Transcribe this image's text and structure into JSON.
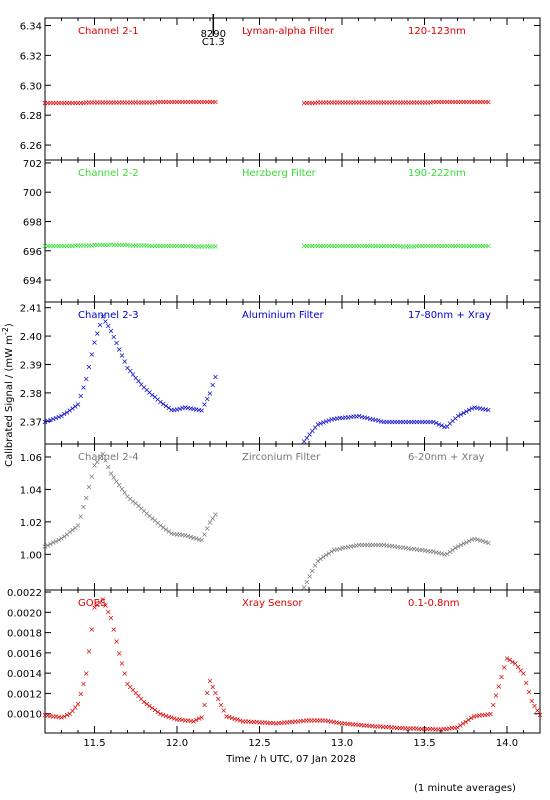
{
  "chart_data": [
    {
      "type": "scatter",
      "color": "#dd0000",
      "labels": [
        "Channel 2-1",
        "Lyman-alpha Filter",
        "120-123nm"
      ],
      "ylim": [
        6.25,
        6.345
      ],
      "yticks": [
        "6.26",
        "6.28",
        "6.30",
        "6.32",
        "6.34"
      ],
      "segments": [
        {
          "x": [
            11.2,
            11.4,
            11.6,
            11.8,
            12.0,
            12.24
          ],
          "y": [
            6.2885,
            6.2886,
            6.2888,
            6.2889,
            6.2891,
            6.2893
          ]
        },
        {
          "x": [
            12.77,
            13.0,
            13.2,
            13.4,
            13.6,
            13.9
          ],
          "y": [
            6.2886,
            6.2887,
            6.2888,
            6.2889,
            6.289,
            6.2892
          ]
        }
      ],
      "marker": {
        "x": 12.22,
        "lines": [
          "8290",
          "C1.3"
        ]
      }
    },
    {
      "type": "scatter",
      "color": "#33dd33",
      "labels": [
        "Channel 2-2",
        "Herzberg Filter",
        "190-222nm"
      ],
      "ylim": [
        692.5,
        702.2
      ],
      "yticks": [
        "694",
        "696",
        "698",
        "700",
        "702"
      ],
      "segments": [
        {
          "x": [
            11.2,
            11.4,
            11.6,
            11.8,
            12.0,
            12.24
          ],
          "y": [
            696.35,
            696.38,
            696.45,
            696.38,
            696.35,
            696.33
          ]
        },
        {
          "x": [
            12.77,
            13.0,
            13.2,
            13.4,
            13.6,
            13.9
          ],
          "y": [
            696.35,
            696.36,
            696.35,
            696.34,
            696.35,
            696.36
          ]
        }
      ]
    },
    {
      "type": "scatter",
      "color": "#0000cc",
      "labels": [
        "Channel 2-3",
        "Aluminium Filter",
        "17-80nm + Xray"
      ],
      "ylim": [
        2.362,
        2.412
      ],
      "yticks": [
        "2.37",
        "2.38",
        "2.39",
        "2.40",
        "2.41"
      ],
      "segments": [
        {
          "x": [
            11.2,
            11.3,
            11.4,
            11.45,
            11.5,
            11.55,
            11.6,
            11.7,
            11.8,
            11.9,
            11.97,
            12.05,
            12.15,
            12.2,
            12.24
          ],
          "y": [
            2.37,
            2.372,
            2.376,
            2.385,
            2.398,
            2.407,
            2.402,
            2.389,
            2.382,
            2.377,
            2.374,
            2.375,
            2.374,
            2.38,
            2.387
          ]
        },
        {
          "x": [
            12.77,
            12.85,
            12.95,
            13.1,
            13.25,
            13.4,
            13.55,
            13.63,
            13.7,
            13.8,
            13.9
          ],
          "y": [
            2.363,
            2.369,
            2.371,
            2.372,
            2.37,
            2.37,
            2.37,
            2.368,
            2.372,
            2.375,
            2.374
          ]
        }
      ]
    },
    {
      "type": "scatter",
      "color": "#777777",
      "labels": [
        "Channel 2-4",
        "Zirconium Filter",
        "6-20nm + Xray"
      ],
      "ylim": [
        0.978,
        1.068
      ],
      "yticks": [
        "1.00",
        "1.02",
        "1.04",
        "1.06"
      ],
      "segments": [
        {
          "x": [
            11.2,
            11.3,
            11.4,
            11.45,
            11.5,
            11.55,
            11.6,
            11.7,
            11.8,
            11.9,
            11.97,
            12.05,
            12.15,
            12.2,
            12.24
          ],
          "y": [
            1.005,
            1.01,
            1.018,
            1.035,
            1.055,
            1.062,
            1.05,
            1.036,
            1.027,
            1.018,
            1.013,
            1.012,
            1.009,
            1.02,
            1.026
          ]
        },
        {
          "x": [
            12.77,
            12.85,
            12.95,
            13.1,
            13.25,
            13.4,
            13.55,
            13.63,
            13.7,
            13.8,
            13.9
          ],
          "y": [
            0.98,
            0.996,
            1.003,
            1.006,
            1.006,
            1.004,
            1.002,
            1.0,
            1.005,
            1.01,
            1.007
          ]
        }
      ]
    },
    {
      "type": "scatter",
      "color": "#dd0000",
      "labels": [
        "GOES",
        "Xray Sensor",
        "0.1-0.8nm"
      ],
      "ylim": [
        0.00081,
        0.00222
      ],
      "yticks": [
        "0.0010",
        "0.0012",
        "0.0014",
        "0.0016",
        "0.0018",
        "0.0020",
        "0.0022"
      ],
      "xticks": [
        "11.5",
        "12.0",
        "12.5",
        "13.0",
        "13.5",
        "14.0"
      ],
      "xticks_values": [
        11.5,
        12.0,
        12.5,
        13.0,
        13.5,
        14.0
      ],
      "xlim": [
        11.2,
        14.2
      ],
      "segments": [
        {
          "x": [
            11.2,
            11.3,
            11.35,
            11.4,
            11.45,
            11.5,
            11.55,
            11.6,
            11.65,
            11.7,
            11.8,
            11.9,
            12.0,
            12.1,
            12.15,
            12.2,
            12.25,
            12.3,
            12.4,
            12.6,
            12.8,
            12.9,
            13.0,
            13.2,
            13.4,
            13.6,
            13.7,
            13.8,
            13.9,
            14.0,
            14.05,
            14.1,
            14.15,
            14.2
          ],
          "y": [
            0.00099,
            0.00097,
            0.001,
            0.0011,
            0.0014,
            0.00205,
            0.00213,
            0.00195,
            0.0016,
            0.0013,
            0.00112,
            0.001,
            0.00095,
            0.00093,
            0.00097,
            0.00133,
            0.00115,
            0.00098,
            0.00093,
            0.00091,
            0.00094,
            0.00094,
            0.00091,
            0.00088,
            0.00086,
            0.00085,
            0.00087,
            0.00098,
            0.001,
            0.00155,
            0.0015,
            0.0014,
            0.00113,
            0.00099
          ]
        }
      ]
    }
  ],
  "ylabel": "Calibrated Signal / (mW m",
  "ylabel_sup": "-2",
  "ylabel_close": ")",
  "xlabel": "Time / h UTC, 07 Jan 2028",
  "note": "(1 minute averages)"
}
